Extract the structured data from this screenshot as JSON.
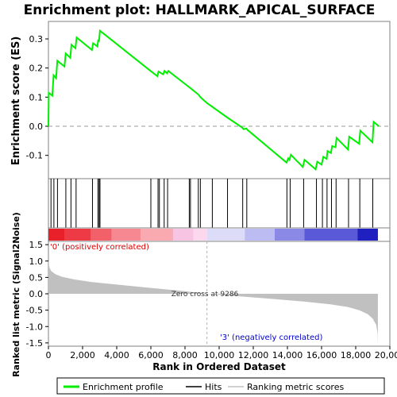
{
  "title": "Enrichment plot: HALLMARK_APICAL_SURFACE",
  "chart_data": {
    "type": "line",
    "title": "Enrichment plot: HALLMARK_APICAL_SURFACE",
    "top_panel": {
      "ylabel": "Enrichment score (ES)",
      "ylim": [
        -0.18,
        0.36
      ],
      "yticks": [
        -0.1,
        0.0,
        0.1,
        0.2,
        0.3
      ],
      "ytick_labels": [
        "-0.1",
        "0.0",
        "0.1",
        "0.2",
        "0.3"
      ],
      "es_curve": {
        "name": "Enrichment profile",
        "color": "#00ee00",
        "points": [
          [
            0,
            0.0
          ],
          [
            20,
            0.115
          ],
          [
            230,
            0.105
          ],
          [
            300,
            0.175
          ],
          [
            450,
            0.165
          ],
          [
            520,
            0.225
          ],
          [
            940,
            0.205
          ],
          [
            1010,
            0.25
          ],
          [
            1280,
            0.235
          ],
          [
            1350,
            0.28
          ],
          [
            1580,
            0.268
          ],
          [
            1650,
            0.305
          ],
          [
            2550,
            0.262
          ],
          [
            2620,
            0.285
          ],
          [
            2870,
            0.274
          ],
          [
            2920,
            0.298
          ],
          [
            2960,
            0.29
          ],
          [
            3020,
            0.328
          ],
          [
            5980,
            0.19
          ],
          [
            6380,
            0.172
          ],
          [
            6450,
            0.188
          ],
          [
            6720,
            0.178
          ],
          [
            6800,
            0.19
          ],
          [
            6950,
            0.182
          ],
          [
            7020,
            0.19
          ],
          [
            8230,
            0.135
          ],
          [
            8300,
            0.132
          ],
          [
            8800,
            0.108
          ],
          [
            8900,
            0.1
          ],
          [
            9286,
            0.08
          ],
          [
            10480,
            0.03
          ],
          [
            11360,
            -0.005
          ],
          [
            11430,
            -0.01
          ],
          [
            11600,
            -0.008
          ],
          [
            11650,
            -0.012
          ],
          [
            13950,
            -0.125
          ],
          [
            14050,
            -0.11
          ],
          [
            14120,
            -0.115
          ],
          [
            14200,
            -0.098
          ],
          [
            14900,
            -0.14
          ],
          [
            15000,
            -0.115
          ],
          [
            15650,
            -0.148
          ],
          [
            15750,
            -0.122
          ],
          [
            16000,
            -0.132
          ],
          [
            16100,
            -0.105
          ],
          [
            16300,
            -0.112
          ],
          [
            16350,
            -0.085
          ],
          [
            16550,
            -0.092
          ],
          [
            16620,
            -0.068
          ],
          [
            16820,
            -0.072
          ],
          [
            16880,
            -0.04
          ],
          [
            17550,
            -0.08
          ],
          [
            17620,
            -0.036
          ],
          [
            18200,
            -0.06
          ],
          [
            18270,
            -0.015
          ],
          [
            18980,
            -0.055
          ],
          [
            19050,
            0.015
          ],
          [
            19350,
            0.0
          ]
        ]
      }
    },
    "hits_panel": {
      "legend_name": "Hits",
      "hit_positions": [
        150,
        320,
        530,
        1020,
        1320,
        1620,
        2580,
        2900,
        2970,
        3020,
        6000,
        6420,
        6500,
        6780,
        6980,
        8250,
        8320,
        8780,
        8900,
        9600,
        10490,
        11380,
        11620,
        13970,
        14160,
        14950,
        15700,
        16050,
        16320,
        16580,
        16850,
        17580,
        18240,
        19000
      ]
    },
    "gradient_bar": {
      "segments": [
        {
          "start": 0,
          "end": 950,
          "color": "#e8202a"
        },
        {
          "start": 950,
          "end": 2500,
          "color": "#ee3a44"
        },
        {
          "start": 2500,
          "end": 3700,
          "color": "#f2606a"
        },
        {
          "start": 3700,
          "end": 5400,
          "color": "#f58890"
        },
        {
          "start": 5400,
          "end": 7300,
          "color": "#f8aab0"
        },
        {
          "start": 7300,
          "end": 8500,
          "color": "#f8c4e4"
        },
        {
          "start": 8500,
          "end": 9286,
          "color": "#fbd8ee"
        },
        {
          "start": 9286,
          "end": 11500,
          "color": "#dcdcf8"
        },
        {
          "start": 11500,
          "end": 13250,
          "color": "#bcbcf2"
        },
        {
          "start": 13250,
          "end": 15000,
          "color": "#8a8ae6"
        },
        {
          "start": 15000,
          "end": 18100,
          "color": "#5a5ad8"
        },
        {
          "start": 18100,
          "end": 19300,
          "color": "#2020c0"
        }
      ]
    },
    "bottom_panel": {
      "ylabel": "Ranked list metric (Signal2Noise)",
      "ylim": [
        -1.6,
        1.6
      ],
      "yticks": [
        -1.5,
        -1.0,
        -0.5,
        0.0,
        0.5,
        1.0,
        1.5
      ],
      "ytick_labels": [
        "-1.5",
        "-1.0",
        "-0.5",
        "0.0",
        "0.5",
        "1.0",
        "1.5"
      ],
      "xlabel": "Rank in Ordered Dataset",
      "xlim": [
        0,
        20000
      ],
      "xticks": [
        0,
        2000,
        4000,
        6000,
        8000,
        10000,
        12000,
        14000,
        16000,
        18000,
        20000
      ],
      "xtick_labels": [
        "0",
        "2,000",
        "4,000",
        "6,000",
        "8,000",
        "10,000",
        "12,000",
        "14,000",
        "16,000",
        "18,000",
        "20,000"
      ],
      "metric_curve": {
        "name": "Ranking metric scores",
        "color": "#c0c0c0",
        "points": [
          [
            0,
            1.05
          ],
          [
            50,
            0.82
          ],
          [
            150,
            0.7
          ],
          [
            400,
            0.6
          ],
          [
            800,
            0.52
          ],
          [
            1500,
            0.44
          ],
          [
            2500,
            0.36
          ],
          [
            4000,
            0.28
          ],
          [
            6000,
            0.18
          ],
          [
            8000,
            0.08
          ],
          [
            9286,
            0.0
          ],
          [
            11000,
            -0.07
          ],
          [
            13000,
            -0.15
          ],
          [
            15000,
            -0.24
          ],
          [
            16500,
            -0.32
          ],
          [
            17500,
            -0.4
          ],
          [
            18200,
            -0.5
          ],
          [
            18700,
            -0.62
          ],
          [
            19000,
            -0.76
          ],
          [
            19200,
            -0.95
          ],
          [
            19280,
            -1.2
          ],
          [
            19300,
            -1.52
          ]
        ]
      },
      "zero_cross_rank": 9286,
      "zero_cross_label": "Zero cross at 9286",
      "pos_label": "'0' (positively correlated)",
      "neg_label": "'3' (negatively correlated)",
      "pos_color": "#dd0000",
      "neg_color": "#0000cc"
    },
    "legend": [
      {
        "name": "Enrichment profile",
        "color": "#00ee00"
      },
      {
        "name": "Hits",
        "color": "#000000"
      },
      {
        "name": "Ranking metric scores",
        "color": "#c0c0c0"
      }
    ]
  }
}
